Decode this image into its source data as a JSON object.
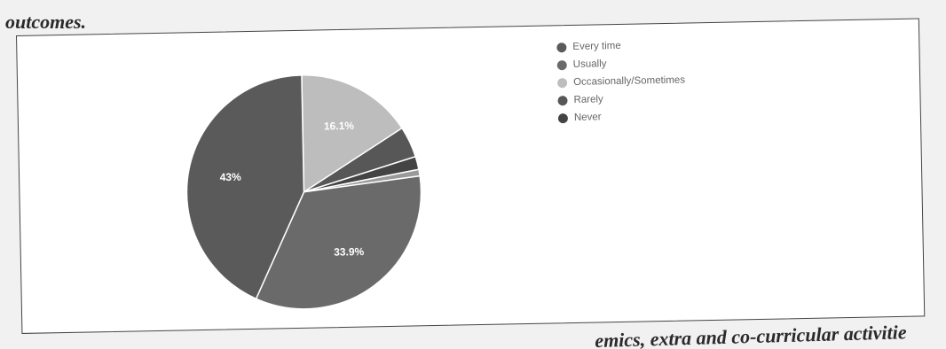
{
  "header": {
    "caption_fragment": "outcomes."
  },
  "footer": {
    "caption_fragment": "emics, extra and co-curricular activitie"
  },
  "chart_data": {
    "type": "pie",
    "title": "",
    "legend_position": "right-top",
    "slices": [
      {
        "label": "Every time",
        "value": 43.0,
        "label_text": "43%",
        "color": "#5a5a5a"
      },
      {
        "label": "Usually",
        "value": 33.9,
        "label_text": "33.9%",
        "color": "#6a6a6a"
      },
      {
        "label": "Occasionally/Sometimes",
        "value": 16.1,
        "label_text": "16.1%",
        "color": "#bdbdbd"
      },
      {
        "label": "Rarely",
        "value": 4.3,
        "label_text": "",
        "color": "#575757"
      },
      {
        "label": "Never",
        "value": 1.8,
        "label_text": "",
        "color": "#444444"
      }
    ],
    "other_slice": {
      "value": 0.9,
      "color": "#9a9a9a"
    }
  }
}
